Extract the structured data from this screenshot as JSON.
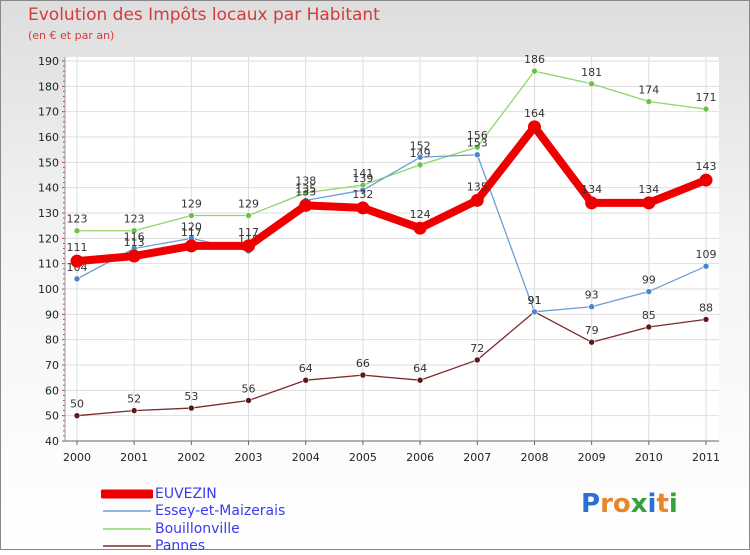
{
  "header": {
    "title": "Evolution des Impôts locaux par Habitant",
    "subtitle": "(en € et par an)"
  },
  "brand": {
    "text": "Proxiti",
    "colors": [
      "#2a6fd6",
      "#e8862a",
      "#e8862a",
      "#3aa03a",
      "#2a6fd6",
      "#e8862a",
      "#3aa03a"
    ]
  },
  "chart_data": {
    "type": "line",
    "title": "Evolution des Impôts locaux par Habitant",
    "subtitle": "(en € et par an)",
    "xlabel": "",
    "ylabel": "",
    "x": [
      "2000",
      "2001",
      "2002",
      "2003",
      "2004",
      "2005",
      "2006",
      "2007",
      "2008",
      "2009",
      "2010",
      "2011"
    ],
    "ylim": [
      40,
      190
    ],
    "yticks": [
      40,
      50,
      60,
      70,
      80,
      90,
      100,
      110,
      120,
      130,
      140,
      150,
      160,
      170,
      180,
      190
    ],
    "grid": true,
    "legend_position": "bottom-left",
    "series": [
      {
        "name": "Pannes",
        "color": "#7a2a2a",
        "marker": "#5a1a1a",
        "values": [
          50,
          52,
          53,
          56,
          64,
          66,
          64,
          72,
          91,
          79,
          85,
          88
        ],
        "labels": [
          "50",
          "52",
          "53",
          "56",
          "64",
          "66",
          "64",
          "72",
          "91",
          "79",
          "85",
          "88"
        ]
      },
      {
        "name": "Bouillonville",
        "color": "#8cd66a",
        "marker": "#6cc04a",
        "values": [
          123,
          123,
          129,
          129,
          138,
          141,
          149,
          156,
          186,
          181,
          174,
          171
        ],
        "labels": [
          "123",
          "123",
          "129",
          "129",
          "138",
          "141",
          "149",
          "156",
          "186",
          "181",
          "174",
          "171"
        ]
      },
      {
        "name": "Essey-et-Maizerais",
        "color": "#6a9fd6",
        "marker": "#4a86c8",
        "values": [
          104,
          116,
          120,
          115,
          135,
          139,
          152,
          153,
          91,
          93,
          99,
          109
        ],
        "labels": [
          "104",
          "116",
          "120",
          "115",
          "135",
          "139",
          "152",
          "153",
          "91",
          "93",
          "99",
          "109"
        ]
      },
      {
        "name": "EUVEZIN",
        "color": "#ee0000",
        "marker": "#ee0000",
        "values": [
          111,
          113,
          117,
          117,
          133,
          132,
          124,
          135,
          164,
          134,
          134,
          143
        ],
        "labels": [
          "111",
          "113",
          "117",
          "117",
          "133",
          "132",
          "124",
          "135",
          "164",
          "134",
          "134",
          "143"
        ]
      }
    ],
    "legend": [
      "EUVEZIN",
      "Essey-et-Maizerais",
      "Bouillonville",
      "Pannes"
    ]
  }
}
